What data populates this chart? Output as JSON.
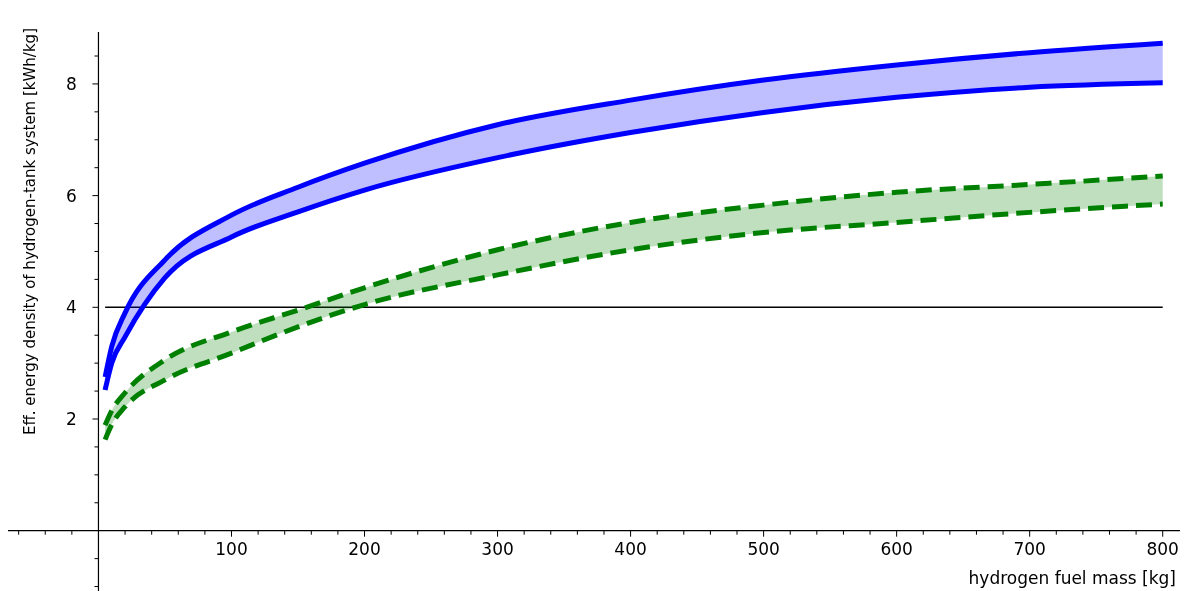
{
  "chart_data": {
    "type": "line",
    "xlabel": "hydrogen fuel mass [kg]",
    "ylabel": "Eff. energy density of hydrogen-tank system [kWh/kg]",
    "x": [
      5,
      10,
      20,
      50,
      100,
      150,
      200,
      300,
      400,
      500,
      600,
      700,
      800
    ],
    "series": [
      {
        "color": "#0000ff",
        "line_style": "solid",
        "values": [
          2.75,
          3.3,
          3.9,
          4.85,
          5.65,
          6.15,
          6.58,
          7.27,
          7.71,
          8.07,
          8.34,
          8.56,
          8.73
        ],
        "lower": [
          2.52,
          3.0,
          3.47,
          4.53,
          5.26,
          5.71,
          6.1,
          6.68,
          7.13,
          7.49,
          7.76,
          7.94,
          8.02
        ],
        "upper": [
          2.75,
          3.3,
          3.9,
          4.85,
          5.65,
          6.15,
          6.58,
          7.27,
          7.71,
          8.07,
          8.34,
          8.56,
          8.73
        ]
      },
      {
        "color": "#0000ff",
        "line_style": "solid",
        "values": [
          2.52,
          3.0,
          3.47,
          4.53,
          5.26,
          5.71,
          6.1,
          6.68,
          7.13,
          7.49,
          7.76,
          7.94,
          8.02
        ]
      },
      {
        "color": "#008000",
        "line_style": "dashed",
        "values": [
          1.89,
          2.15,
          2.47,
          3.06,
          3.56,
          3.95,
          4.35,
          5.03,
          5.52,
          5.83,
          6.06,
          6.2,
          6.35
        ],
        "lower": [
          1.63,
          1.9,
          2.22,
          2.7,
          3.18,
          3.65,
          4.05,
          4.58,
          5.03,
          5.34,
          5.52,
          5.7,
          5.85
        ],
        "upper": [
          1.89,
          2.15,
          2.47,
          3.06,
          3.56,
          3.95,
          4.35,
          5.03,
          5.52,
          5.83,
          6.06,
          6.2,
          6.35
        ]
      },
      {
        "color": "#008000",
        "line_style": "dashed",
        "values": [
          1.63,
          1.9,
          2.22,
          2.7,
          3.18,
          3.65,
          4.05,
          4.58,
          5.03,
          5.34,
          5.52,
          5.7,
          5.85
        ]
      }
    ],
    "ref_lines": [
      {
        "axis": "y",
        "value": 4,
        "color": "#000000"
      }
    ],
    "xlim": [
      -68,
      813
    ],
    "ylim": [
      -1.08,
      8.93
    ],
    "xticks": [
      {
        "value": -60,
        "label": null
      },
      {
        "value": -40,
        "label": null
      },
      {
        "value": -20,
        "label": null
      },
      {
        "value": 20,
        "label": null
      },
      {
        "value": 40,
        "label": null
      },
      {
        "value": 60,
        "label": null
      },
      {
        "value": 80,
        "label": null
      },
      100,
      {
        "value": 120,
        "label": null
      },
      {
        "value": 140,
        "label": null
      },
      {
        "value": 160,
        "label": null
      },
      {
        "value": 180,
        "label": null
      },
      200,
      {
        "value": 220,
        "label": null
      },
      {
        "value": 240,
        "label": null
      },
      {
        "value": 260,
        "label": null
      },
      {
        "value": 280,
        "label": null
      },
      300,
      {
        "value": 320,
        "label": null
      },
      {
        "value": 340,
        "label": null
      },
      {
        "value": 360,
        "label": null
      },
      {
        "value": 380,
        "label": null
      },
      400,
      {
        "value": 420,
        "label": null
      },
      {
        "value": 440,
        "label": null
      },
      {
        "value": 460,
        "label": null
      },
      {
        "value": 480,
        "label": null
      },
      500,
      {
        "value": 520,
        "label": null
      },
      {
        "value": 540,
        "label": null
      },
      {
        "value": 560,
        "label": null
      },
      {
        "value": 580,
        "label": null
      },
      600,
      {
        "value": 620,
        "label": null
      },
      {
        "value": 640,
        "label": null
      },
      {
        "value": 660,
        "label": null
      },
      {
        "value": 680,
        "label": null
      },
      700,
      {
        "value": 720,
        "label": null
      },
      {
        "value": 740,
        "label": null
      },
      {
        "value": 760,
        "label": null
      },
      {
        "value": 780,
        "label": null
      },
      800
    ],
    "yticks": [
      {
        "value": -1,
        "label": null
      },
      {
        "value": -0.5,
        "label": null
      },
      {
        "value": 0.5,
        "label": null
      },
      {
        "value": 1,
        "label": null
      },
      {
        "value": 1.5,
        "label": null
      },
      2,
      {
        "value": 2.5,
        "label": null
      },
      {
        "value": 3,
        "label": null
      },
      {
        "value": 3.5,
        "label": null
      },
      4,
      {
        "value": 4.5,
        "label": null
      },
      {
        "value": 5,
        "label": null
      },
      {
        "value": 5.5,
        "label": null
      },
      6,
      {
        "value": 6.5,
        "label": null
      },
      {
        "value": 7,
        "label": null
      },
      {
        "value": 7.5,
        "label": null
      },
      8,
      {
        "value": 8.5,
        "label": null
      }
    ],
    "grid": false
  }
}
